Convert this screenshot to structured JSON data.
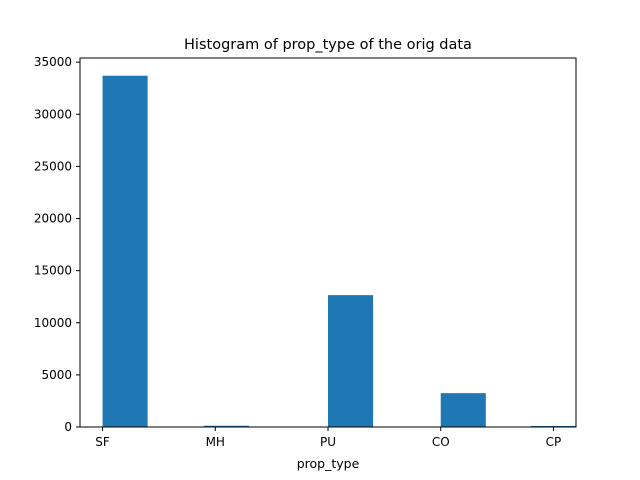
{
  "chart_data": {
    "type": "bar",
    "title": "Histogram of prop_type of the orig data",
    "xlabel": "prop_type",
    "ylabel": "",
    "tick_labels": [
      "SF",
      "MH",
      "PU",
      "CO",
      "CP"
    ],
    "tick_positions": [
      0,
      1,
      2,
      3,
      4
    ],
    "bins": [
      {
        "x0": 0.0,
        "x1": 0.4,
        "value": 33700
      },
      {
        "x0": 0.9,
        "x1": 1.3,
        "value": 120
      },
      {
        "x0": 2.0,
        "x1": 2.4,
        "value": 12650
      },
      {
        "x0": 3.0,
        "x1": 3.4,
        "value": 3250
      },
      {
        "x0": 3.8,
        "x1": 4.2,
        "value": 100
      }
    ],
    "xlim": [
      -0.2,
      4.2
    ],
    "ylim": [
      0,
      35400
    ],
    "yticks": [
      0,
      5000,
      10000,
      15000,
      20000,
      25000,
      30000,
      35000
    ],
    "grid": false,
    "bar_color": "#1f77b4"
  }
}
